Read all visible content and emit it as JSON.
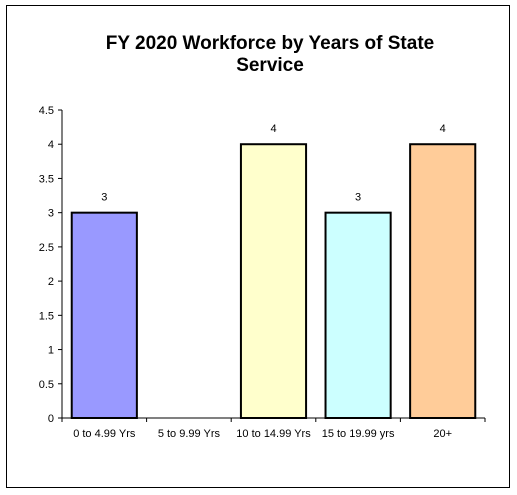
{
  "chart_data": {
    "type": "bar",
    "title": "FY 2020 Workforce by Years of State Service",
    "xlabel": "",
    "ylabel": "",
    "categories": [
      "0 to 4.99 Yrs",
      "5 to 9.99 Yrs",
      "10 to 14.99 Yrs",
      "15 to 19.99 yrs",
      "20+"
    ],
    "values": [
      3,
      null,
      4,
      3,
      4
    ],
    "data_labels": [
      "3",
      "",
      "4",
      "3",
      "4"
    ],
    "bar_colors": [
      "#9999ff",
      "#ffffff",
      "#ffffcc",
      "#ccffff",
      "#ffcc99"
    ],
    "ylim": [
      0,
      4.5
    ],
    "yticks": [
      0,
      0.5,
      1,
      1.5,
      2,
      2.5,
      3,
      3.5,
      4,
      4.5
    ],
    "ytick_labels": [
      "0",
      "0.5",
      "1",
      "1.5",
      "2",
      "2.5",
      "3",
      "3.5",
      "4",
      "4.5"
    ],
    "grid": false,
    "legend": "none"
  }
}
